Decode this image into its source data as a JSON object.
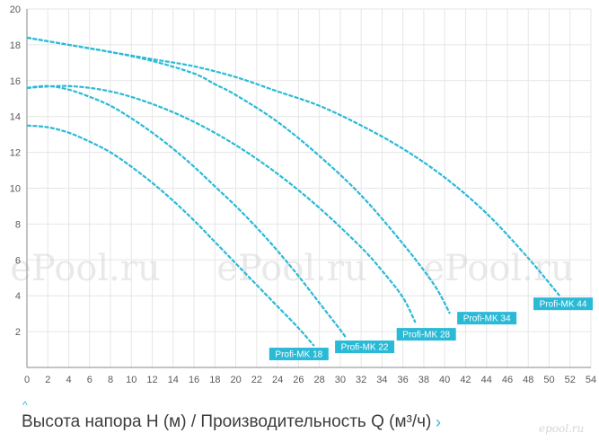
{
  "caption": "Высота напора H (м) / Производительность Q (м³/ч)",
  "caption_left_mark": "^",
  "caption_right_mark": "›",
  "logo_text": "epool.ru",
  "watermark": "ePool.ru",
  "colors": {
    "curve": "#2bbad6",
    "label_bg": "#2bbad6",
    "label_text": "#ffffff",
    "grid": "#e6e6e6"
  },
  "chart_data": {
    "type": "line",
    "title": "",
    "xlabel": "Производительность Q (м³/ч)",
    "ylabel": "Высота напора H (м)",
    "xlim": [
      0,
      54
    ],
    "ylim": [
      0,
      20
    ],
    "xticks": [
      0,
      2,
      4,
      6,
      8,
      10,
      12,
      14,
      16,
      18,
      20,
      22,
      24,
      26,
      28,
      30,
      32,
      34,
      36,
      38,
      40,
      42,
      44,
      46,
      48,
      50,
      52,
      54
    ],
    "yticks": [
      2,
      4,
      6,
      8,
      10,
      12,
      14,
      16,
      18,
      20
    ],
    "grid": true,
    "series": [
      {
        "name": "Profi-MK 18",
        "points": [
          [
            0,
            13.5
          ],
          [
            2,
            13.4
          ],
          [
            4,
            13.1
          ],
          [
            6,
            12.6
          ],
          [
            8,
            12.0
          ],
          [
            10,
            11.2
          ],
          [
            12,
            10.3
          ],
          [
            14,
            9.3
          ],
          [
            16,
            8.2
          ],
          [
            18,
            7.0
          ],
          [
            20,
            5.8
          ],
          [
            22,
            4.6
          ],
          [
            24,
            3.4
          ],
          [
            26,
            2.2
          ],
          [
            27.5,
            1.2
          ]
        ]
      },
      {
        "name": "Profi-MK 22",
        "points": [
          [
            0,
            15.6
          ],
          [
            2,
            15.7
          ],
          [
            4,
            15.5
          ],
          [
            6,
            15.1
          ],
          [
            8,
            14.6
          ],
          [
            10,
            13.9
          ],
          [
            12,
            13.1
          ],
          [
            14,
            12.2
          ],
          [
            16,
            11.2
          ],
          [
            18,
            10.1
          ],
          [
            20,
            9.0
          ],
          [
            22,
            7.8
          ],
          [
            24,
            6.5
          ],
          [
            26,
            5.1
          ],
          [
            28,
            3.6
          ],
          [
            30,
            2.1
          ],
          [
            30.5,
            1.7
          ]
        ]
      },
      {
        "name": "Profi-MK 28",
        "points": [
          [
            0,
            15.6
          ],
          [
            4,
            15.7
          ],
          [
            8,
            15.4
          ],
          [
            12,
            14.7
          ],
          [
            16,
            13.7
          ],
          [
            20,
            12.4
          ],
          [
            24,
            10.8
          ],
          [
            28,
            8.9
          ],
          [
            32,
            6.7
          ],
          [
            34,
            5.4
          ],
          [
            36,
            3.9
          ],
          [
            37.2,
            2.5
          ]
        ]
      },
      {
        "name": "Profi-MK 34",
        "points": [
          [
            0,
            18.4
          ],
          [
            4,
            18.0
          ],
          [
            8,
            17.6
          ],
          [
            12,
            17.1
          ],
          [
            16,
            16.4
          ],
          [
            18,
            15.8
          ],
          [
            20,
            15.2
          ],
          [
            24,
            13.7
          ],
          [
            28,
            11.8
          ],
          [
            32,
            9.6
          ],
          [
            36,
            6.9
          ],
          [
            39,
            4.6
          ],
          [
            40.5,
            3.0
          ]
        ]
      },
      {
        "name": "Profi-MK 44",
        "points": [
          [
            0,
            18.4
          ],
          [
            4,
            18.0
          ],
          [
            8,
            17.6
          ],
          [
            12,
            17.2
          ],
          [
            16,
            16.8
          ],
          [
            20,
            16.2
          ],
          [
            24,
            15.4
          ],
          [
            28,
            14.6
          ],
          [
            32,
            13.5
          ],
          [
            36,
            12.2
          ],
          [
            40,
            10.6
          ],
          [
            44,
            8.6
          ],
          [
            48,
            6.1
          ],
          [
            51,
            4.0
          ]
        ]
      }
    ],
    "labels": [
      {
        "series": "Profi-MK 18",
        "text": "Profi-MK 18",
        "at": [
          23.2,
          0.75
        ]
      },
      {
        "series": "Profi-MK 22",
        "text": "Profi-MK 22",
        "at": [
          29.5,
          1.15
        ]
      },
      {
        "series": "Profi-MK 28",
        "text": "Profi-MK 28",
        "at": [
          35.4,
          1.85
        ]
      },
      {
        "series": "Profi-MK 34",
        "text": "Profi-MK 34",
        "at": [
          41.2,
          2.75
        ]
      },
      {
        "series": "Profi-MK 44",
        "text": "Profi-MK 44",
        "at": [
          48.5,
          3.55
        ]
      }
    ]
  }
}
